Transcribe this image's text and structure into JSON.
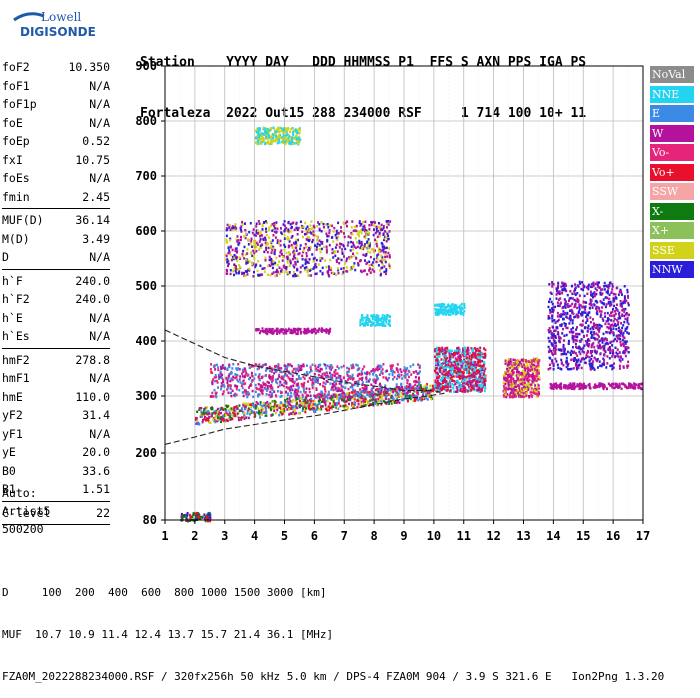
{
  "logo": {
    "line1": "Lowell",
    "line2": "DIGISONDE"
  },
  "header": {
    "line1": "Station    YYYY DAY   DDD HHMMSS P1  FFS S AXN PPS IGA PS",
    "line2": "Fortaleza  2022 Out15 288 234000 RSF     1 714 100 10+ 11"
  },
  "params": {
    "group1": [
      {
        "label": "foF2",
        "value": "10.350"
      },
      {
        "label": "foF1",
        "value": "N/A"
      },
      {
        "label": "foF1p",
        "value": "N/A"
      },
      {
        "label": "foE",
        "value": "N/A"
      },
      {
        "label": "foEp",
        "value": "0.52"
      },
      {
        "label": "fxI",
        "value": "10.75"
      },
      {
        "label": "foEs",
        "value": "N/A"
      },
      {
        "label": "fmin",
        "value": "2.45"
      }
    ],
    "group2": [
      {
        "label": "MUF(D)",
        "value": "36.14"
      },
      {
        "label": "M(D)",
        "value": "3.49"
      },
      {
        "label": "D",
        "value": "N/A"
      }
    ],
    "group3": [
      {
        "label": "h`F",
        "value": "240.0"
      },
      {
        "label": "h`F2",
        "value": "240.0"
      },
      {
        "label": "h`E",
        "value": "N/A"
      },
      {
        "label": "h`Es",
        "value": "N/A"
      }
    ],
    "group4": [
      {
        "label": "hmF2",
        "value": "278.8"
      },
      {
        "label": "hmF1",
        "value": "N/A"
      },
      {
        "label": "hmE",
        "value": "110.0"
      },
      {
        "label": "yF2",
        "value": "31.4"
      },
      {
        "label": "yF1",
        "value": "N/A"
      },
      {
        "label": "yE",
        "value": "20.0"
      },
      {
        "label": "B0",
        "value": "33.6"
      },
      {
        "label": "B1",
        "value": "1.51"
      }
    ],
    "group5": [
      {
        "label": "C-level",
        "value": "22"
      }
    ]
  },
  "autoscale": {
    "line1": "Auto:",
    "line2": "Artist5",
    "line3": "500200"
  },
  "legend": [
    {
      "label": "NoVal",
      "color": "#8c8c8c"
    },
    {
      "label": "NNE",
      "color": "#22d4f0"
    },
    {
      "label": "E",
      "color": "#3a8ae6"
    },
    {
      "label": "W",
      "color": "#b4129c"
    },
    {
      "label": "Vo-",
      "color": "#e6247a"
    },
    {
      "label": "Vo+",
      "color": "#e8102c"
    },
    {
      "label": "SSW",
      "color": "#f4a6a6"
    },
    {
      "label": "X-",
      "color": "#0e7a10"
    },
    {
      "label": "X+",
      "color": "#8cc05a"
    },
    {
      "label": "SSE",
      "color": "#d2d21a"
    },
    {
      "label": "NNW",
      "color": "#2c1ed8"
    }
  ],
  "footer": {
    "line1": "D     100  200  400  600  800 1000 1500 3000 [km]",
    "line2": "MUF  10.7 10.9 11.4 12.4 13.7 15.7 21.4 36.1 [MHz]",
    "line3": "FZA0M_2022288234000.RSF / 320fx256h 50 kHz 5.0 km / DPS-4 FZA0M 904 / 3.9 S 321.6 E   Ion2Png 1.3.20"
  },
  "chart_data": {
    "type": "scatter",
    "title": "",
    "xlabel": "",
    "ylabel": "",
    "xlim": [
      1,
      17
    ],
    "ylim": [
      80,
      900
    ],
    "x_ticks": [
      1,
      2,
      3,
      4,
      5,
      6,
      7,
      8,
      9,
      10,
      11,
      12,
      13,
      14,
      15,
      16,
      17
    ],
    "y_ticks": [
      80,
      200,
      300,
      400,
      500,
      600,
      700,
      800,
      900
    ],
    "grid": true,
    "legend_position": "right",
    "scale_note": "y axis non-linear (virtual height)",
    "echo_clusters": [
      {
        "name": "F-trace main",
        "x": [
          2.0,
          10.0
        ],
        "y": [
          250,
          310
        ],
        "colors": [
          "#e8102c",
          "#b4129c",
          "#3a8ae6",
          "#0e7a10",
          "#d2d21a"
        ]
      },
      {
        "name": "F-trace upper band",
        "x": [
          2.5,
          9.5
        ],
        "y": [
          300,
          360
        ],
        "colors": [
          "#b4129c",
          "#e6247a",
          "#3a8ae6"
        ]
      },
      {
        "name": "F-trace 10-11.7 MHz",
        "x": [
          10.0,
          11.7
        ],
        "y": [
          310,
          390
        ],
        "colors": [
          "#e8102c",
          "#22d4f0",
          "#b4129c"
        ]
      },
      {
        "name": "oblique 12.5-13.5 MHz",
        "x": [
          12.3,
          13.5
        ],
        "y": [
          300,
          370
        ],
        "colors": [
          "#e6247a",
          "#d2d21a",
          "#b4129c"
        ]
      },
      {
        "name": "spread 13.8-16.5 MHz",
        "x": [
          13.8,
          16.5
        ],
        "y": [
          350,
          510
        ],
        "colors": [
          "#2c1ed8",
          "#b4129c"
        ]
      },
      {
        "name": "low band 13.8-17 MHz",
        "x": [
          13.8,
          17.0
        ],
        "y": [
          315,
          325
        ],
        "colors": [
          "#b4129c"
        ]
      },
      {
        "name": "multi-hop 3-8.5 MHz",
        "x": [
          3.0,
          8.5
        ],
        "y": [
          520,
          620
        ],
        "colors": [
          "#d2d21a",
          "#b4129c",
          "#2c1ed8"
        ]
      },
      {
        "name": "cyan patch ~8 MHz",
        "x": [
          7.5,
          8.5
        ],
        "y": [
          430,
          450
        ],
        "colors": [
          "#22d4f0"
        ]
      },
      {
        "name": "cyan patch ~10.5 MHz",
        "x": [
          10.0,
          11.0
        ],
        "y": [
          450,
          470
        ],
        "colors": [
          "#22d4f0"
        ]
      },
      {
        "name": "magenta band ~420 km",
        "x": [
          4.0,
          6.5
        ],
        "y": [
          415,
          425
        ],
        "colors": [
          "#b4129c"
        ]
      },
      {
        "name": "sporadic ~780 km",
        "x": [
          4.0,
          5.5
        ],
        "y": [
          760,
          790
        ],
        "colors": [
          "#d2d21a",
          "#22d4f0"
        ]
      },
      {
        "name": "near-ground echoes",
        "x": [
          1.5,
          2.5
        ],
        "y": [
          80,
          95
        ],
        "colors": [
          "#2c1ed8",
          "#0e7a10",
          "#e8102c"
        ]
      }
    ],
    "profile_curve": {
      "x": [
        1.0,
        2.0,
        3.0,
        4.0,
        5.0,
        6.0,
        7.0,
        8.0,
        9.0,
        9.8,
        10.35,
        10.0,
        9.0,
        8.0,
        7.0,
        6.0,
        5.0,
        4.0,
        3.0,
        2.0,
        1.0
      ],
      "y": [
        215,
        228,
        242,
        250,
        258,
        265,
        275,
        285,
        295,
        300,
        305,
        310,
        310,
        318,
        325,
        335,
        345,
        355,
        370,
        395,
        420
      ]
    }
  }
}
